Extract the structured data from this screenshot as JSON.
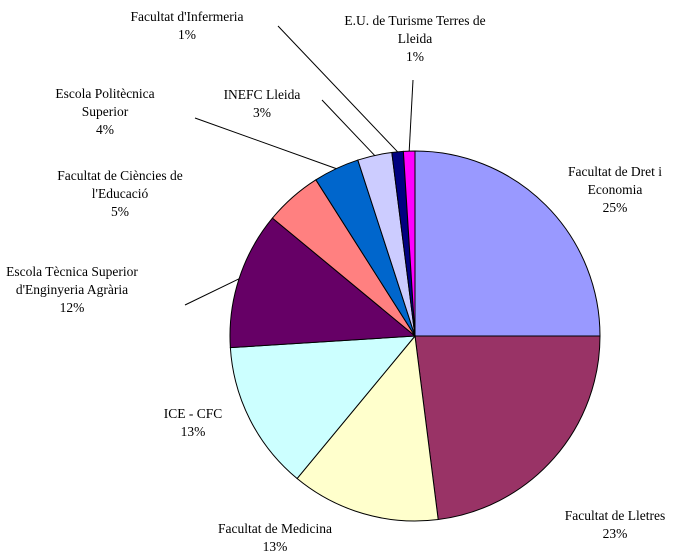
{
  "chart_data": {
    "type": "pie",
    "categories": [
      "Facultat de Dret i Economia",
      "Facultat de Lletres",
      "Facultat de Medicina",
      "ICE - CFC",
      "Escola Tècnica Superior d'Enginyeria Agrària",
      "Facultat de Ciències de l'Educació",
      "Escola Politècnica Superior",
      "INEFC Lleida",
      "Facultat d'Infermeria",
      "E.U. de Turisme Terres de Lleida"
    ],
    "values": [
      25,
      23,
      13,
      13,
      12,
      5,
      4,
      3,
      1,
      1
    ],
    "value_labels": [
      "25%",
      "23%",
      "13%",
      "13%",
      "12%",
      "5%",
      "4%",
      "3%",
      "1%",
      "1%"
    ],
    "colors": [
      "#9999ff",
      "#993366",
      "#ffffcc",
      "#ccffff",
      "#660066",
      "#ff8080",
      "#0066cc",
      "#ccccff",
      "#000080",
      "#ff00ff"
    ]
  }
}
